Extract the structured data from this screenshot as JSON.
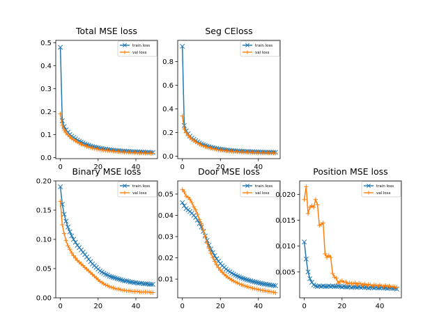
{
  "chart_data": [
    {
      "type": "line",
      "title": "Total MSE loss",
      "xlim": [
        -2.45,
        51.45
      ],
      "ylim": [
        -0.005,
        0.51
      ],
      "xticks": [
        0,
        20,
        40
      ],
      "yticks": [
        0.0,
        0.1,
        0.2,
        0.3,
        0.4,
        0.5
      ],
      "ytick_decimals": 1,
      "legend_loc": "top-right",
      "series": [
        {
          "name": "train loss",
          "color": "#1f77b4",
          "marker": "x",
          "values": [
            0.48,
            0.16,
            0.135,
            0.12,
            0.11,
            0.1,
            0.093,
            0.087,
            0.081,
            0.076,
            0.071,
            0.067,
            0.063,
            0.059,
            0.056,
            0.053,
            0.05,
            0.048,
            0.046,
            0.044,
            0.042,
            0.04,
            0.039,
            0.037,
            0.036,
            0.035,
            0.034,
            0.033,
            0.032,
            0.031,
            0.03,
            0.03,
            0.029,
            0.028,
            0.028,
            0.027,
            0.027,
            0.026,
            0.026,
            0.025,
            0.025,
            0.025,
            0.024,
            0.024,
            0.024,
            0.023,
            0.023,
            0.023,
            0.022,
            0.022
          ]
        },
        {
          "name": "val loss",
          "color": "#ff7f0e",
          "marker": "+",
          "values": [
            0.19,
            0.14,
            0.12,
            0.108,
            0.098,
            0.09,
            0.083,
            0.077,
            0.072,
            0.067,
            0.062,
            0.058,
            0.055,
            0.051,
            0.048,
            0.046,
            0.043,
            0.041,
            0.039,
            0.037,
            0.036,
            0.034,
            0.033,
            0.032,
            0.031,
            0.03,
            0.029,
            0.028,
            0.027,
            0.026,
            0.026,
            0.025,
            0.024,
            0.024,
            0.023,
            0.023,
            0.022,
            0.022,
            0.021,
            0.021,
            0.021,
            0.02,
            0.02,
            0.02,
            0.019,
            0.019,
            0.019,
            0.019,
            0.018,
            0.018
          ]
        }
      ]
    },
    {
      "type": "line",
      "title": "Seg CEloss",
      "xlim": [
        -2.45,
        51.45
      ],
      "ylim": [
        -0.02,
        0.98
      ],
      "xticks": [
        0,
        20,
        40
      ],
      "yticks": [
        0.0,
        0.2,
        0.4,
        0.6,
        0.8
      ],
      "ytick_decimals": 1,
      "legend_loc": "top-right",
      "series": [
        {
          "name": "train loss",
          "color": "#1f77b4",
          "marker": "x",
          "values": [
            0.93,
            0.26,
            0.215,
            0.19,
            0.17,
            0.155,
            0.143,
            0.132,
            0.122,
            0.113,
            0.105,
            0.098,
            0.092,
            0.086,
            0.081,
            0.077,
            0.073,
            0.069,
            0.066,
            0.063,
            0.06,
            0.058,
            0.056,
            0.054,
            0.052,
            0.05,
            0.049,
            0.048,
            0.046,
            0.045,
            0.044,
            0.043,
            0.042,
            0.041,
            0.041,
            0.04,
            0.039,
            0.039,
            0.038,
            0.037,
            0.037,
            0.036,
            0.036,
            0.035,
            0.035,
            0.035,
            0.034,
            0.034,
            0.034,
            0.033
          ]
        },
        {
          "name": "val loss",
          "color": "#ff7f0e",
          "marker": "+",
          "values": [
            0.34,
            0.23,
            0.2,
            0.178,
            0.16,
            0.145,
            0.133,
            0.122,
            0.112,
            0.103,
            0.095,
            0.088,
            0.082,
            0.077,
            0.072,
            0.068,
            0.064,
            0.06,
            0.057,
            0.054,
            0.052,
            0.05,
            0.048,
            0.046,
            0.044,
            0.043,
            0.041,
            0.04,
            0.039,
            0.038,
            0.037,
            0.036,
            0.035,
            0.034,
            0.034,
            0.033,
            0.032,
            0.032,
            0.031,
            0.031,
            0.03,
            0.03,
            0.03,
            0.029,
            0.029,
            0.029,
            0.028,
            0.028,
            0.028,
            0.027
          ]
        }
      ]
    },
    {
      "type": "line",
      "title": "Binary MSE loss",
      "xlim": [
        -2.45,
        51.45
      ],
      "ylim": [
        0.0,
        0.2
      ],
      "xticks": [
        0,
        20,
        40
      ],
      "yticks": [
        0.0,
        0.05,
        0.1,
        0.15,
        0.2
      ],
      "ytick_decimals": 2,
      "legend_loc": "top-right",
      "series": [
        {
          "name": "train loss",
          "color": "#1f77b4",
          "marker": "x",
          "values": [
            0.19,
            0.16,
            0.143,
            0.131,
            0.121,
            0.113,
            0.106,
            0.1,
            0.095,
            0.09,
            0.086,
            0.082,
            0.078,
            0.074,
            0.07,
            0.066,
            0.062,
            0.058,
            0.055,
            0.052,
            0.049,
            0.046,
            0.044,
            0.042,
            0.04,
            0.039,
            0.037,
            0.036,
            0.035,
            0.034,
            0.033,
            0.032,
            0.031,
            0.03,
            0.029,
            0.029,
            0.028,
            0.027,
            0.027,
            0.026,
            0.026,
            0.025,
            0.025,
            0.025,
            0.024,
            0.024,
            0.024,
            0.023,
            0.023,
            0.023
          ]
        },
        {
          "name": "val loss",
          "color": "#ff7f0e",
          "marker": "+",
          "values": [
            0.165,
            0.125,
            0.11,
            0.098,
            0.089,
            0.083,
            0.077,
            0.072,
            0.068,
            0.064,
            0.061,
            0.058,
            0.055,
            0.052,
            0.049,
            0.046,
            0.043,
            0.04,
            0.037,
            0.034,
            0.031,
            0.028,
            0.026,
            0.024,
            0.022,
            0.021,
            0.019,
            0.018,
            0.017,
            0.016,
            0.015,
            0.015,
            0.014,
            0.013,
            0.013,
            0.012,
            0.012,
            0.012,
            0.011,
            0.011,
            0.011,
            0.011,
            0.01,
            0.01,
            0.01,
            0.01,
            0.01,
            0.01,
            0.009,
            0.009
          ]
        }
      ]
    },
    {
      "type": "line",
      "title": "Door MSE loss",
      "xlim": [
        -2.45,
        51.45
      ],
      "ylim": [
        0.0012,
        0.0562
      ],
      "xticks": [
        0,
        20,
        40
      ],
      "yticks": [
        0.01,
        0.02,
        0.03,
        0.04,
        0.05
      ],
      "ytick_decimals": 2,
      "legend_loc": "top-right",
      "series": [
        {
          "name": "train loss",
          "color": "#1f77b4",
          "marker": "x",
          "values": [
            0.046,
            0.0445,
            0.0432,
            0.0425,
            0.0418,
            0.041,
            0.04,
            0.039,
            0.0378,
            0.0362,
            0.0345,
            0.0325,
            0.0303,
            0.0282,
            0.026,
            0.0242,
            0.0225,
            0.021,
            0.0196,
            0.0184,
            0.0173,
            0.0163,
            0.0155,
            0.0147,
            0.014,
            0.0134,
            0.0128,
            0.0123,
            0.0118,
            0.0114,
            0.011,
            0.0106,
            0.0103,
            0.01,
            0.0097,
            0.0094,
            0.0092,
            0.0089,
            0.0087,
            0.0085,
            0.0083,
            0.0081,
            0.0079,
            0.0077,
            0.0076,
            0.0074,
            0.0073,
            0.0071,
            0.007,
            0.0069
          ]
        },
        {
          "name": "val loss",
          "color": "#ff7f0e",
          "marker": "+",
          "values": [
            0.0522,
            0.051,
            0.049,
            0.0485,
            0.0475,
            0.046,
            0.044,
            0.0425,
            0.0405,
            0.038,
            0.036,
            0.033,
            0.03,
            0.027,
            0.0245,
            0.0222,
            0.0202,
            0.0184,
            0.0168,
            0.0154,
            0.0142,
            0.0132,
            0.0123,
            0.0115,
            0.0108,
            0.0102,
            0.0096,
            0.0091,
            0.0086,
            0.0082,
            0.0078,
            0.0074,
            0.0071,
            0.0068,
            0.0065,
            0.0062,
            0.006,
            0.0057,
            0.0055,
            0.0053,
            0.0051,
            0.0049,
            0.0047,
            0.0046,
            0.0044,
            0.0043,
            0.0041,
            0.004,
            0.0038,
            0.0036
          ]
        }
      ]
    },
    {
      "type": "line",
      "title": "Position MSE loss",
      "xlim": [
        -2.45,
        51.45
      ],
      "ylim": [
        0.0,
        0.0226
      ],
      "xticks": [
        0,
        20,
        40
      ],
      "yticks": [
        0.005,
        0.01,
        0.015,
        0.02
      ],
      "ytick_decimals": 3,
      "legend_loc": "top-right",
      "series": [
        {
          "name": "train loss",
          "color": "#1f77b4",
          "marker": "x",
          "values": [
            0.0108,
            0.0075,
            0.005,
            0.0037,
            0.003,
            0.0025,
            0.0023,
            0.0022,
            0.0023,
            0.0022,
            0.0023,
            0.0022,
            0.0022,
            0.0023,
            0.0022,
            0.0023,
            0.0022,
            0.0022,
            0.0023,
            0.0022,
            0.0021,
            0.0022,
            0.0021,
            0.0021,
            0.0022,
            0.002,
            0.0021,
            0.0021,
            0.002,
            0.0021,
            0.002,
            0.0021,
            0.002,
            0.002,
            0.0019,
            0.002,
            0.002,
            0.0019,
            0.002,
            0.0019,
            0.0019,
            0.002,
            0.0019,
            0.0019,
            0.0018,
            0.0019,
            0.0019,
            0.0018,
            0.0018,
            0.0017
          ]
        },
        {
          "name": "val loss",
          "color": "#ff7f0e",
          "marker": "+",
          "values": [
            0.019,
            0.0215,
            0.0163,
            0.0175,
            0.0178,
            0.0175,
            0.019,
            0.018,
            0.014,
            0.0142,
            0.0145,
            0.0085,
            0.0078,
            0.0082,
            0.0078,
            0.0047,
            0.004,
            0.0038,
            0.0028,
            0.0032,
            0.0033,
            0.003,
            0.0031,
            0.0027,
            0.0029,
            0.0028,
            0.0027,
            0.0029,
            0.0026,
            0.0028,
            0.0027,
            0.0025,
            0.0027,
            0.0024,
            0.0026,
            0.0025,
            0.0023,
            0.0025,
            0.0024,
            0.0023,
            0.0025,
            0.0023,
            0.0022,
            0.0024,
            0.0022,
            0.0023,
            0.0021,
            0.0022,
            0.0021,
            0.002
          ]
        }
      ]
    }
  ]
}
